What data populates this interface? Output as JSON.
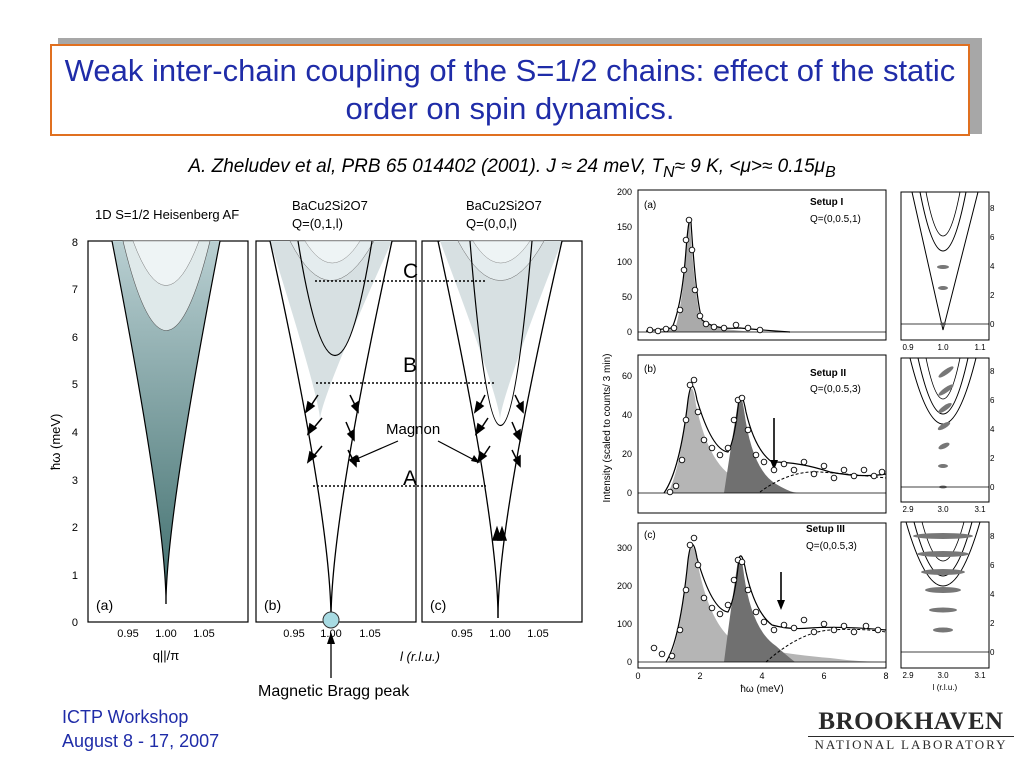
{
  "slide": {
    "title": "Weak inter-chain coupling of the S=1/2 chains: effect of the static order on spin dynamics.",
    "citation": "A. Zheludev et al, PRB 65 014402 (2001). J ≈ 24 meV, T",
    "citation_tn_sub": "N",
    "citation_mid": "≈ 9 K, <μ>≈ 0.15μ",
    "citation_mub_sub": "B",
    "footer_line1": "ICTP Workshop",
    "footer_line2": "August 8 - 17, 2007",
    "logo_main": "BROOKHAVEN",
    "logo_sub": "NATIONAL LABORATORY"
  },
  "left_figure": {
    "panel_a_title": "1D S=1/2 Heisenberg AF",
    "panel_b_title": "BaCu2Si2O7",
    "panel_b_q": "Q=(0,1,l)",
    "panel_c_title": "BaCu2Si2O7",
    "panel_c_q": "Q=(0,0,l)",
    "panel_a_label": "(a)",
    "panel_b_label": "(b)",
    "panel_c_label": "(c)",
    "y_axis_label": "ħω (meV)",
    "y_ticks": [
      "0",
      "1",
      "2",
      "3",
      "4",
      "5",
      "6",
      "7",
      "8"
    ],
    "x_ticks": [
      "0.95",
      "1.00",
      "1.05"
    ],
    "x_label_a": "q||/π",
    "x_label_bc": "l (r.l.u.)",
    "level_labels": [
      "C",
      "B",
      "A"
    ],
    "magnon_label": "Magnon",
    "bragg_label": "Magnetic Bragg peak"
  },
  "right_figure": {
    "y_axis_label": "Intensity (scaled to counts/ 3 min)",
    "x_axis_label": "ħω (meV)",
    "x_ticks": [
      "0",
      "2",
      "4",
      "6",
      "8"
    ],
    "panels": [
      {
        "label": "(a)",
        "setup": "Setup I",
        "q": "Q=(0,0.5,1)",
        "y_ticks": [
          "0",
          "50",
          "100",
          "150",
          "200"
        ],
        "side_ticks": [
          "0.9",
          "1.0",
          "1.1"
        ]
      },
      {
        "label": "(b)",
        "setup": "Setup II",
        "q": "Q=(0,0.5,3)",
        "y_ticks": [
          "0",
          "20",
          "40",
          "60"
        ],
        "side_ticks": [
          "2.9",
          "3.0",
          "3.1"
        ]
      },
      {
        "label": "(c)",
        "setup": "Setup III",
        "q": "Q=(0,0.5,3)",
        "y_ticks": [
          "0",
          "100",
          "200",
          "300"
        ],
        "side_ticks": [
          "2.9",
          "3.0",
          "3.1"
        ],
        "side_xlabel": "l (r.l.u.)"
      }
    ],
    "side_y_ticks": [
      "0",
      "2",
      "4",
      "6",
      "8"
    ]
  },
  "colors": {
    "title_text": "#1f2ca8",
    "title_border": "#e07020",
    "footer_text": "#1f2ca8"
  }
}
